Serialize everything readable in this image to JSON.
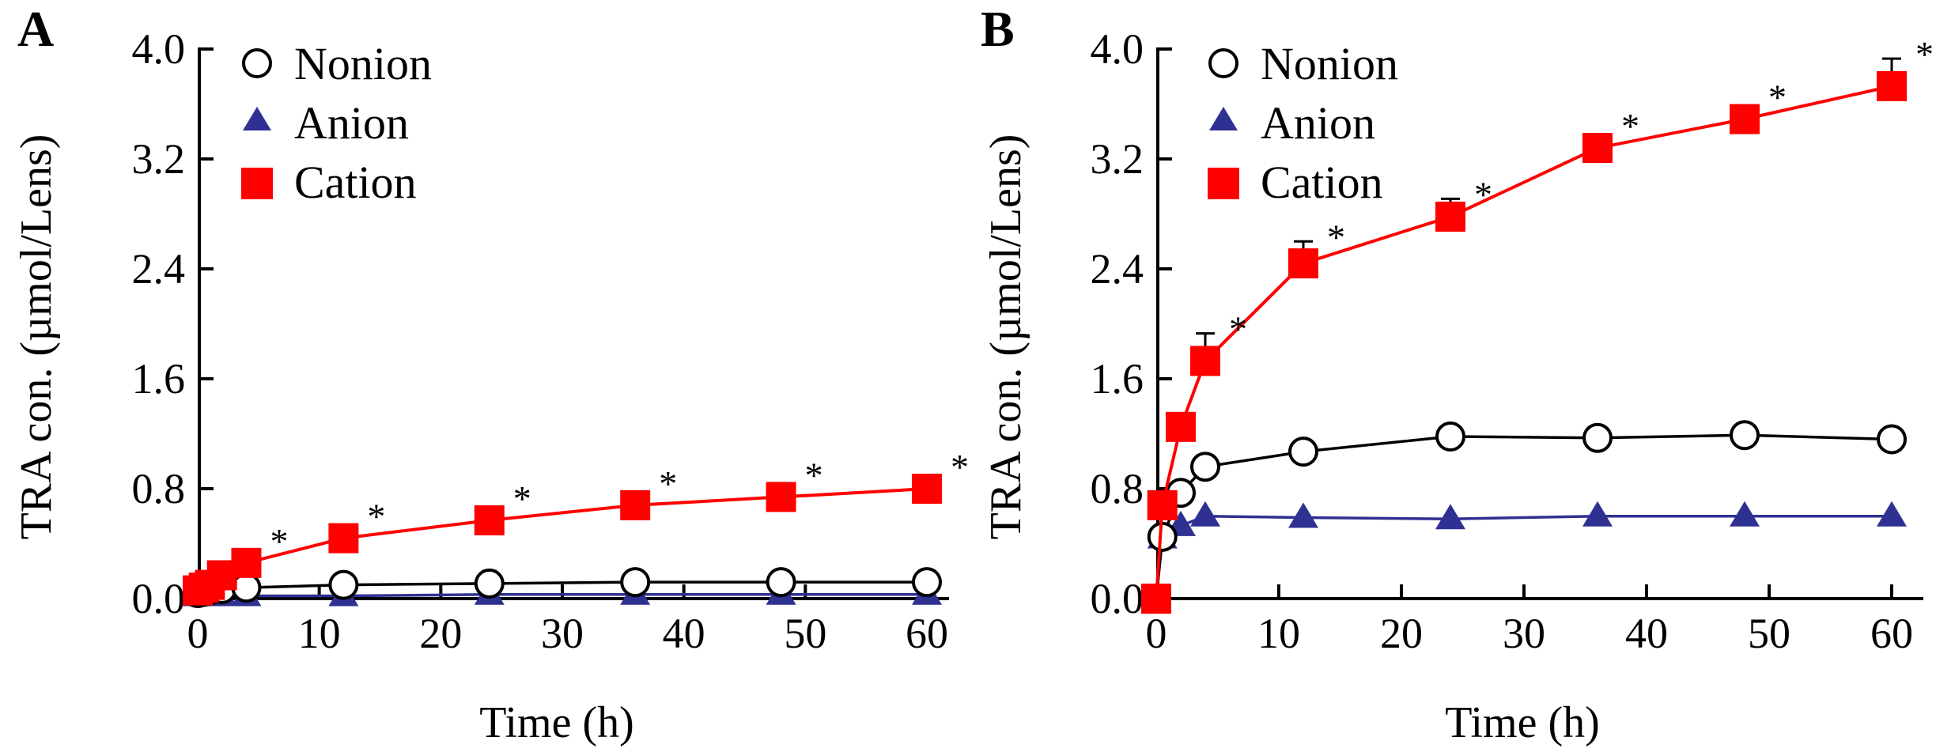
{
  "chart_data": [
    {
      "panel": "A",
      "type": "line",
      "xlabel": "Time (h)",
      "ylabel": "TRA con. (µmol/Lens)",
      "xlim": [
        0,
        60
      ],
      "ylim": [
        0.0,
        4.0
      ],
      "xticks": [
        "0",
        "10",
        "20",
        "30",
        "40",
        "50",
        "60"
      ],
      "yticks": [
        "0.0",
        "0.8",
        "1.6",
        "2.4",
        "3.2",
        "4.0"
      ],
      "legend_position": "top-left",
      "series": [
        {
          "name": "Nonion",
          "marker": "circle-open",
          "color": "#000000",
          "x": [
            0,
            0.5,
            1,
            2,
            4,
            12,
            24,
            36,
            48,
            60
          ],
          "y": [
            0.04,
            0.05,
            0.06,
            0.07,
            0.08,
            0.1,
            0.11,
            0.12,
            0.12,
            0.12
          ],
          "err": [
            0,
            0,
            0,
            0,
            0,
            0,
            0,
            0,
            0,
            0
          ]
        },
        {
          "name": "Anion",
          "marker": "triangle",
          "color": "#2e3192",
          "x": [
            0,
            0.5,
            1,
            2,
            4,
            12,
            24,
            36,
            48,
            60
          ],
          "y": [
            0.02,
            0.02,
            0.02,
            0.02,
            0.02,
            0.02,
            0.03,
            0.03,
            0.03,
            0.03
          ],
          "err": [
            0,
            0,
            0,
            0,
            0,
            0,
            0,
            0,
            0,
            0
          ]
        },
        {
          "name": "Cation",
          "marker": "square",
          "color": "#ff0000",
          "x": [
            0,
            0.5,
            1,
            2,
            4,
            12,
            24,
            36,
            48,
            60
          ],
          "y": [
            0.06,
            0.08,
            0.1,
            0.17,
            0.26,
            0.44,
            0.57,
            0.68,
            0.74,
            0.8
          ],
          "err": [
            0,
            0,
            0,
            0,
            0.02,
            0.02,
            0.02,
            0.02,
            0.02,
            0.02
          ],
          "significance": [
            "",
            "",
            "",
            "",
            "*",
            "*",
            "*",
            "*",
            "*",
            "*"
          ]
        }
      ]
    },
    {
      "panel": "B",
      "type": "line",
      "xlabel": "Time (h)",
      "ylabel": "TRA con. (µmol/Lens)",
      "xlim": [
        0,
        60
      ],
      "ylim": [
        0.0,
        4.0
      ],
      "xticks": [
        "0",
        "10",
        "20",
        "30",
        "40",
        "50",
        "60"
      ],
      "yticks": [
        "0.0",
        "0.8",
        "1.6",
        "2.4",
        "3.2",
        "4.0"
      ],
      "legend_position": "top-left",
      "series": [
        {
          "name": "Nonion",
          "marker": "circle-open",
          "color": "#000000",
          "x": [
            0,
            0.5,
            2,
            4,
            12,
            24,
            36,
            48,
            60
          ],
          "y": [
            0.0,
            0.45,
            0.77,
            0.96,
            1.07,
            1.18,
            1.17,
            1.19,
            1.16
          ],
          "err": [
            0,
            0,
            0,
            0,
            0,
            0,
            0,
            0,
            0
          ]
        },
        {
          "name": "Anion",
          "marker": "triangle",
          "color": "#2e3192",
          "x": [
            0,
            0.5,
            2,
            4,
            12,
            24,
            36,
            48,
            60
          ],
          "y": [
            0.0,
            0.44,
            0.53,
            0.6,
            0.59,
            0.58,
            0.6,
            0.6,
            0.6
          ],
          "err": [
            0,
            0,
            0,
            0,
            0,
            0,
            0,
            0,
            0
          ]
        },
        {
          "name": "Cation",
          "marker": "square",
          "color": "#ff0000",
          "x": [
            0,
            0.5,
            2,
            4,
            12,
            24,
            36,
            48,
            60
          ],
          "y": [
            0.0,
            0.68,
            1.25,
            1.73,
            2.44,
            2.78,
            3.28,
            3.49,
            3.73
          ],
          "err": [
            0,
            0,
            0,
            0.2,
            0.16,
            0.13,
            0.05,
            0.05,
            0.2
          ],
          "significance": [
            "",
            "",
            "",
            "*",
            "*",
            "*",
            "*",
            "*",
            "*"
          ]
        }
      ]
    }
  ]
}
